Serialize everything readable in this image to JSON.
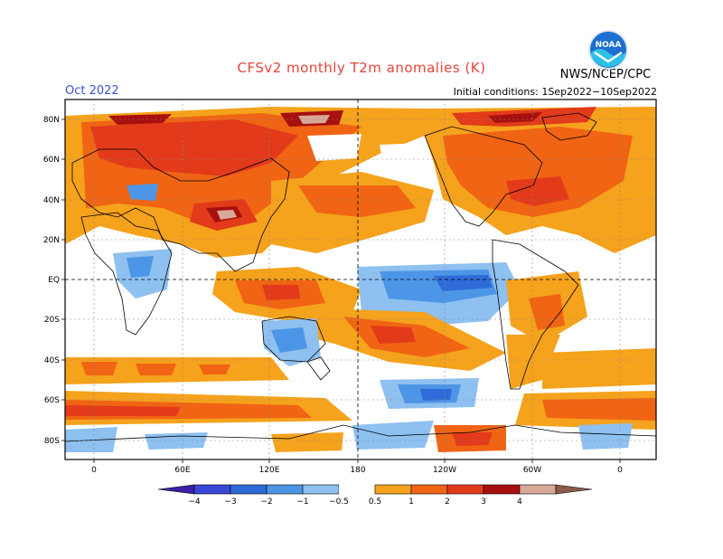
{
  "header": {
    "title": "CFSv2 monthly T2m anomalies (K)",
    "month": "Oct 2022",
    "initial_conditions": "Initial conditions: 1Sep2022−10Sep2022",
    "agency": "NWS/NCEP/CPC",
    "logo_text": "NOAA"
  },
  "axes": {
    "lat_labels": [
      "80N",
      "60N",
      "40N",
      "20N",
      "EQ",
      "20S",
      "40S",
      "60S",
      "80S"
    ],
    "lon_labels": [
      "0",
      "60E",
      "120E",
      "180",
      "120W",
      "60W",
      "0"
    ]
  },
  "colorbar": {
    "labels": [
      "−4",
      "−3",
      "−2",
      "−1",
      "−0.5",
      "0.5",
      "1",
      "2",
      "3",
      "4"
    ],
    "colors_negative": [
      "#3b1fa8",
      "#3a46d6",
      "#2f6bd8",
      "#4d95e6",
      "#8ec0f0"
    ],
    "colors_positive": [
      "#f5a21c",
      "#f06414",
      "#e23a1a",
      "#a8100f",
      "#d8a898",
      "#8a5a4a"
    ]
  },
  "legend_colors": {
    "warm1": "#f5a21c",
    "warm2": "#f06414",
    "warm3": "#e23a1a",
    "warm4": "#a8100f",
    "warm5": "#d8a898",
    "cool1": "#8ec0f0",
    "cool2": "#4d95e6",
    "cool3": "#2f6bd8"
  }
}
